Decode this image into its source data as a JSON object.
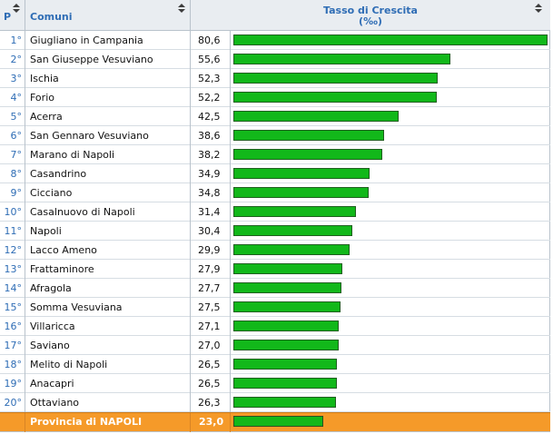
{
  "header": {
    "rank_label": "P",
    "name_label": "Comuni",
    "rate_label": "Tasso di Crescita",
    "rate_unit": "(‰)"
  },
  "rows": [
    {
      "rank": "1°",
      "name": "Giugliano in Campania",
      "value": "80,6",
      "num": 80.6
    },
    {
      "rank": "2°",
      "name": "San Giuseppe Vesuviano",
      "value": "55,6",
      "num": 55.6
    },
    {
      "rank": "3°",
      "name": "Ischia",
      "value": "52,3",
      "num": 52.3
    },
    {
      "rank": "4°",
      "name": "Forio",
      "value": "52,2",
      "num": 52.2
    },
    {
      "rank": "5°",
      "name": "Acerra",
      "value": "42,5",
      "num": 42.5
    },
    {
      "rank": "6°",
      "name": "San Gennaro Vesuviano",
      "value": "38,6",
      "num": 38.6
    },
    {
      "rank": "7°",
      "name": "Marano di Napoli",
      "value": "38,2",
      "num": 38.2
    },
    {
      "rank": "8°",
      "name": "Casandrino",
      "value": "34,9",
      "num": 34.9
    },
    {
      "rank": "9°",
      "name": "Cicciano",
      "value": "34,8",
      "num": 34.8
    },
    {
      "rank": "10°",
      "name": "Casalnuovo di Napoli",
      "value": "31,4",
      "num": 31.4
    },
    {
      "rank": "11°",
      "name": "Napoli",
      "value": "30,4",
      "num": 30.4
    },
    {
      "rank": "12°",
      "name": "Lacco Ameno",
      "value": "29,9",
      "num": 29.9
    },
    {
      "rank": "13°",
      "name": "Frattaminore",
      "value": "27,9",
      "num": 27.9
    },
    {
      "rank": "14°",
      "name": "Afragola",
      "value": "27,7",
      "num": 27.7
    },
    {
      "rank": "15°",
      "name": "Somma Vesuviana",
      "value": "27,5",
      "num": 27.5
    },
    {
      "rank": "16°",
      "name": "Villaricca",
      "value": "27,1",
      "num": 27.1
    },
    {
      "rank": "17°",
      "name": "Saviano",
      "value": "27,0",
      "num": 27.0
    },
    {
      "rank": "18°",
      "name": "Melito di Napoli",
      "value": "26,5",
      "num": 26.5
    },
    {
      "rank": "19°",
      "name": "Anacapri",
      "value": "26,5",
      "num": 26.5
    },
    {
      "rank": "20°",
      "name": "Ottaviano",
      "value": "26,3",
      "num": 26.3
    }
  ],
  "footer": {
    "name": "Provincia di NAPOLI",
    "value": "23,0",
    "num": 23.0
  },
  "colors": {
    "header_text": "#2f6db5",
    "bar_fill": "#12b81a",
    "footer_bg": "#f59a29"
  },
  "icons": {
    "sort": "sort-arrows-icon"
  }
}
